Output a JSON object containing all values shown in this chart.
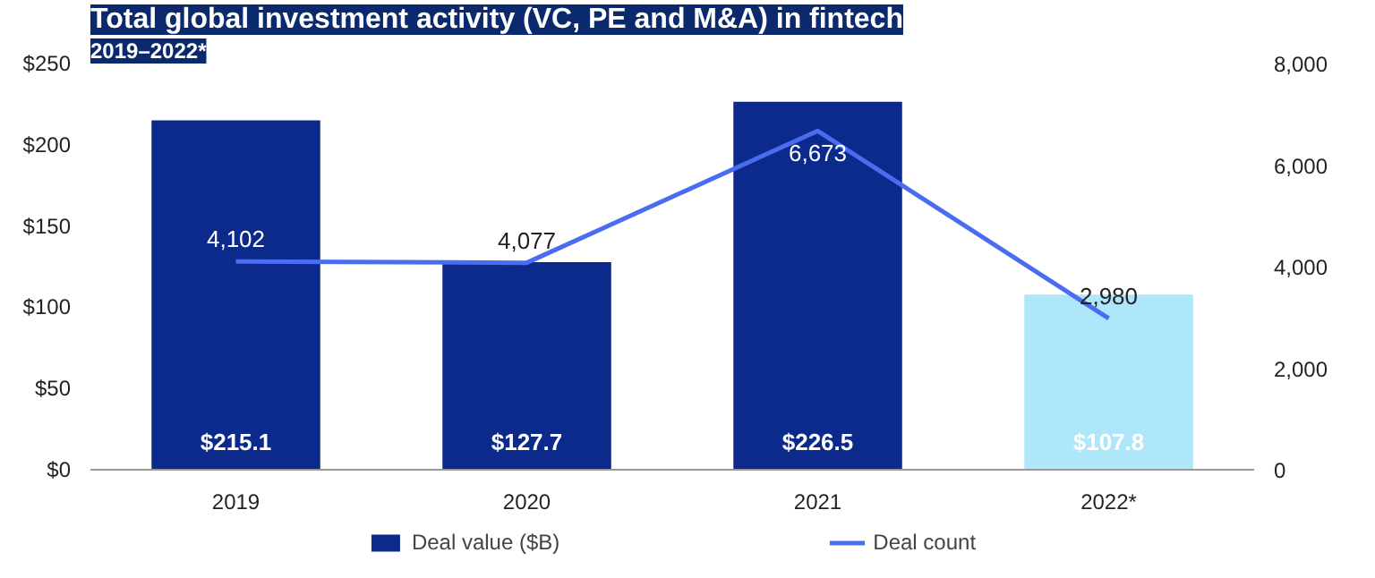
{
  "chart_data": {
    "type": "bar",
    "title": "Total global investment activity (VC, PE and M&A) in fintech",
    "subtitle": "2019–2022*",
    "categories": [
      "2019",
      "2020",
      "2021",
      "2022*"
    ],
    "series": [
      {
        "name": "Deal value ($B)",
        "color": "#0b2a8c",
        "colors": [
          "#0b2a8c",
          "#0b2a8c",
          "#0b2a8c",
          "#aee6fa"
        ],
        "values": [
          215.1,
          127.7,
          226.5,
          107.8
        ],
        "value_labels": [
          "$215.1",
          "$127.7",
          "$226.5",
          "$107.8"
        ]
      },
      {
        "name": "Deal count",
        "type": "line",
        "axis": "y2",
        "color": "#4a6cf0",
        "values": [
          4102,
          4077,
          6673,
          2980
        ],
        "value_labels": [
          "4,102",
          "4,077",
          "6,673",
          "2,980"
        ]
      }
    ],
    "ylim": [
      0,
      250
    ],
    "yticks": [
      {
        "value": 0,
        "label": "$0"
      },
      {
        "value": 50,
        "label": "$50"
      },
      {
        "value": 100,
        "label": "$100"
      },
      {
        "value": 150,
        "label": "$150"
      },
      {
        "value": 200,
        "label": "$200"
      },
      {
        "value": 250,
        "label": "$250"
      }
    ],
    "y2lim": [
      0,
      8000
    ],
    "y2ticks": [
      0,
      {
        "value": 2000,
        "label": "2,000"
      },
      {
        "value": 4000,
        "label": "4,000"
      },
      {
        "value": 6000,
        "label": "6,000"
      },
      {
        "value": 8000,
        "label": "8,000"
      }
    ],
    "legend": "bottom",
    "grid": false
  }
}
